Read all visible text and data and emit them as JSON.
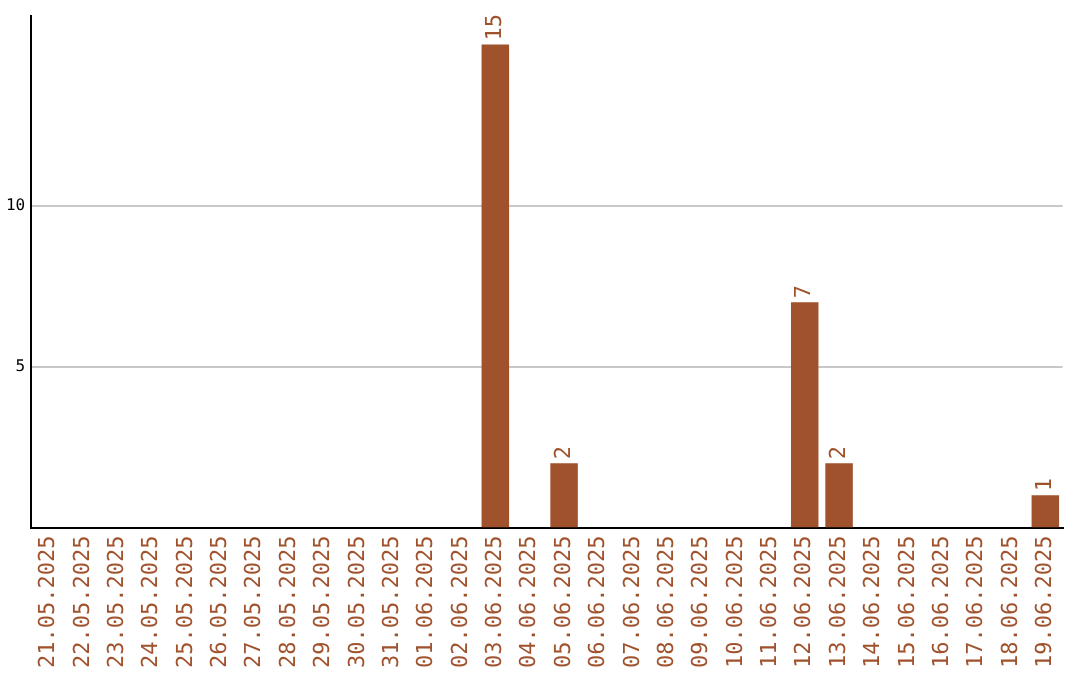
{
  "chart_data": {
    "type": "bar",
    "categories": [
      "21.05.2025",
      "22.05.2025",
      "23.05.2025",
      "24.05.2025",
      "25.05.2025",
      "26.05.2025",
      "27.05.2025",
      "28.05.2025",
      "29.05.2025",
      "30.05.2025",
      "31.05.2025",
      "01.06.2025",
      "02.06.2025",
      "03.06.2025",
      "04.06.2025",
      "05.06.2025",
      "06.06.2025",
      "07.06.2025",
      "08.06.2025",
      "09.06.2025",
      "10.06.2025",
      "11.06.2025",
      "12.06.2025",
      "13.06.2025",
      "14.06.2025",
      "15.06.2025",
      "16.06.2025",
      "17.06.2025",
      "18.06.2025",
      "19.06.2025"
    ],
    "values": [
      0,
      0,
      0,
      0,
      0,
      0,
      0,
      0,
      0,
      0,
      0,
      0,
      0,
      15,
      0,
      2,
      0,
      0,
      0,
      0,
      0,
      0,
      7,
      2,
      0,
      0,
      0,
      0,
      0,
      1
    ],
    "value_labels": [
      null,
      null,
      null,
      null,
      null,
      null,
      null,
      null,
      null,
      null,
      null,
      null,
      null,
      "15",
      null,
      "2",
      null,
      null,
      null,
      null,
      null,
      null,
      "7",
      "2",
      null,
      null,
      null,
      null,
      null,
      "1"
    ],
    "color": "#a0522d",
    "ylim": [
      0,
      15.9
    ],
    "yticks": [
      5,
      10
    ],
    "grid": "y",
    "legend": false
  }
}
